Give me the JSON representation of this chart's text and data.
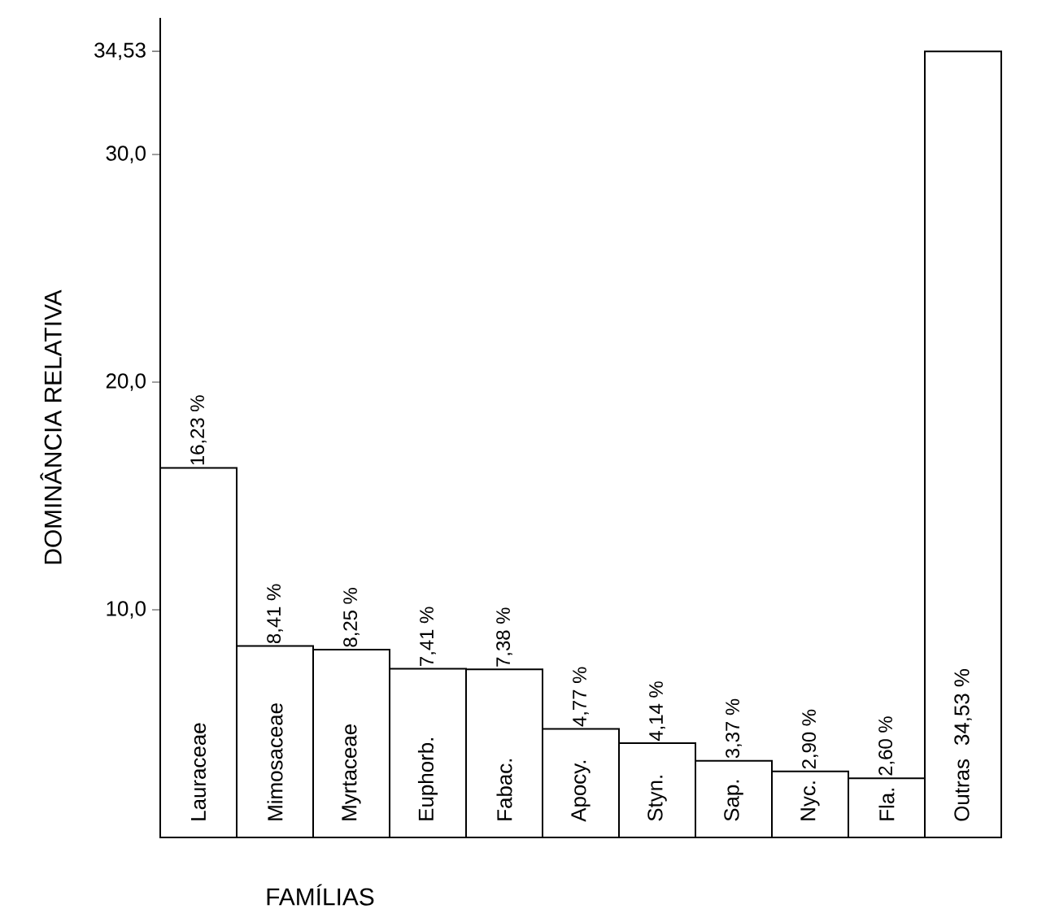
{
  "chart_data": {
    "type": "bar",
    "xlabel": "FAMÍLIAS",
    "ylabel": "DOMINÂNCIA   RELATIVA",
    "categories": [
      "Lauraceae",
      "Mimosaceae",
      "Myrtaceae",
      "Euphorb.",
      "Fabac.",
      "Apocy.",
      "Styn.",
      "Sap.",
      "Nyc.",
      "Fla.",
      "Outras"
    ],
    "values": [
      16.23,
      8.41,
      8.25,
      7.41,
      7.38,
      4.77,
      4.14,
      3.37,
      2.9,
      2.6,
      34.53
    ],
    "value_labels": [
      "16,23 %",
      "8,41 %",
      "8,25 %",
      "7,41 %",
      "7,38 %",
      "4,77 %",
      "4,14 %",
      "3,37 %",
      "2,90 %",
      "2,60 %",
      "34,53 %"
    ],
    "color": "#ffffff",
    "ylim": [
      0,
      36
    ],
    "yticks": [
      {
        "value": 10,
        "label": "10,0"
      },
      {
        "value": 20,
        "label": "20,0"
      },
      {
        "value": 30,
        "label": "30,0"
      },
      {
        "value": 34.53,
        "label": "34,53"
      }
    ]
  }
}
